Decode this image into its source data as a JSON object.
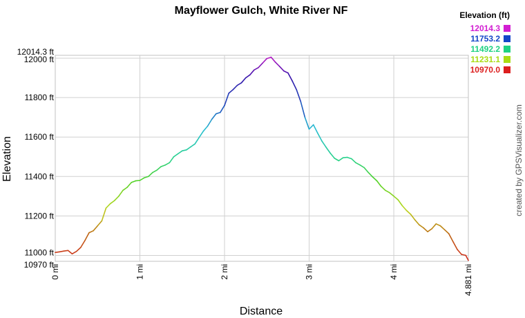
{
  "chart_data": {
    "type": "line",
    "title": "Mayflower Gulch, White River NF",
    "xlabel": "Distance",
    "ylabel": "Elevation",
    "credit": "created by GPSVisualizer.com",
    "xlim": [
      0,
      4.881
    ],
    "ylim": [
      10970,
      12014.3
    ],
    "grid": true,
    "y_ticks": [
      {
        "value": 12014.3,
        "label": "12014.3 ft"
      },
      {
        "value": 12000,
        "label": "12000 ft"
      },
      {
        "value": 11800,
        "label": "11800 ft"
      },
      {
        "value": 11600,
        "label": "11600 ft"
      },
      {
        "value": 11400,
        "label": "11400 ft"
      },
      {
        "value": 11200,
        "label": "11200 ft"
      },
      {
        "value": 11000,
        "label": "11000 ft"
      },
      {
        "value": 10970,
        "label": "10970 ft"
      }
    ],
    "x_ticks": [
      {
        "value": 0,
        "label": "0 mi"
      },
      {
        "value": 1,
        "label": "1 mi"
      },
      {
        "value": 2,
        "label": "2 mi"
      },
      {
        "value": 3,
        "label": "3 mi"
      },
      {
        "value": 4,
        "label": "4 mi"
      },
      {
        "value": 4.881,
        "label": "4.881 mi"
      }
    ],
    "legend": {
      "title": "Elevation (ft)",
      "placement": "top-right",
      "entries": [
        {
          "label": "12014.3",
          "color": "#d21ed2"
        },
        {
          "label": "11753.2",
          "color": "#1446c8"
        },
        {
          "label": "11492.2",
          "color": "#1ed282"
        },
        {
          "label": "11231.1",
          "color": "#aadc14"
        },
        {
          "label": "10970.0",
          "color": "#dc1e1e"
        }
      ]
    },
    "series": [
      {
        "x": [
          0,
          0.05,
          0.1,
          0.15,
          0.2,
          0.25,
          0.3,
          0.35,
          0.4,
          0.45,
          0.5,
          0.55,
          0.6,
          0.65,
          0.7,
          0.75,
          0.8,
          0.85,
          0.9,
          0.95,
          1.0,
          1.05,
          1.1,
          1.15,
          1.2,
          1.25,
          1.3,
          1.35,
          1.4,
          1.45,
          1.5,
          1.55,
          1.6,
          1.65,
          1.7,
          1.75,
          1.8,
          1.85,
          1.9,
          1.95,
          2.0,
          2.05,
          2.1,
          2.15,
          2.2,
          2.25,
          2.3,
          2.35,
          2.4,
          2.45,
          2.5,
          2.55,
          2.6,
          2.65,
          2.7,
          2.75,
          2.8,
          2.85,
          2.9,
          2.95,
          3.0,
          3.05,
          3.1,
          3.15,
          3.2,
          3.25,
          3.3,
          3.35,
          3.4,
          3.45,
          3.5,
          3.55,
          3.6,
          3.65,
          3.7,
          3.75,
          3.8,
          3.85,
          3.9,
          3.95,
          4.0,
          4.05,
          4.1,
          4.15,
          4.2,
          4.25,
          4.3,
          4.35,
          4.4,
          4.45,
          4.5,
          4.55,
          4.6,
          4.65,
          4.7,
          4.75,
          4.8,
          4.85,
          4.881
        ],
        "y": [
          11015,
          11018,
          11022,
          11025,
          11008,
          11020,
          11040,
          11075,
          11115,
          11125,
          11150,
          11175,
          11240,
          11262,
          11278,
          11300,
          11330,
          11345,
          11370,
          11378,
          11380,
          11393,
          11400,
          11420,
          11432,
          11450,
          11458,
          11470,
          11500,
          11515,
          11530,
          11535,
          11550,
          11565,
          11598,
          11630,
          11655,
          11690,
          11718,
          11725,
          11760,
          11822,
          11840,
          11862,
          11875,
          11900,
          11915,
          11940,
          11952,
          11975,
          11998,
          12005,
          11980,
          11958,
          11935,
          11925,
          11885,
          11840,
          11780,
          11700,
          11640,
          11662,
          11620,
          11580,
          11548,
          11518,
          11492,
          11480,
          11495,
          11497,
          11490,
          11470,
          11458,
          11445,
          11420,
          11398,
          11378,
          11350,
          11330,
          11318,
          11300,
          11282,
          11252,
          11228,
          11208,
          11180,
          11155,
          11140,
          11120,
          11135,
          11160,
          11150,
          11130,
          11110,
          11070,
          11030,
          11005,
          11000,
          10975
        ]
      }
    ]
  }
}
